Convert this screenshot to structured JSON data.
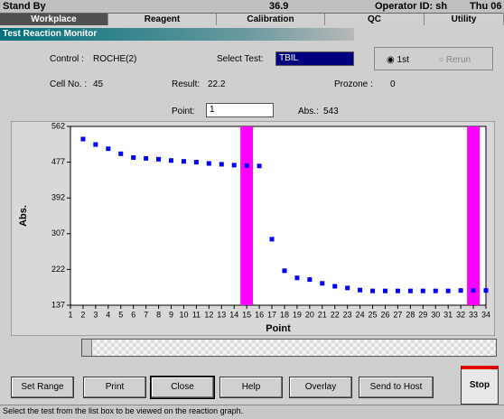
{
  "status_bar": {
    "state": "Stand By",
    "temperature": "36.9",
    "operator": "Operator ID: sh",
    "date": "Thu 06"
  },
  "tabs": [
    "Workplace",
    "Reagent",
    "Calibration",
    "QC",
    "Utility"
  ],
  "window": {
    "title": "Test Reaction Monitor"
  },
  "form": {
    "control_label": "Control :",
    "control_value": "ROCHE(2)",
    "select_test_label": "Select Test:",
    "select_test_value": "TBIL",
    "radio": [
      "1st",
      "Rerun"
    ],
    "cell_label": "Cell No. :",
    "cell_value": 45,
    "result_label": "Result:",
    "result_value": 22.2,
    "prozone_label": "Prozone :",
    "prozone_value": 0,
    "point_label": "Point:",
    "point_value": 1,
    "abs_label": "Abs.:",
    "abs_value": 543
  },
  "chart_data": {
    "type": "scatter",
    "xlabel": "Point",
    "ylabel": "Abs.",
    "color": "#0000ff",
    "x": [
      2,
      3,
      4,
      5,
      6,
      7,
      8,
      9,
      10,
      11,
      12,
      13,
      14,
      15,
      16,
      17,
      18,
      19,
      20,
      21,
      22,
      23,
      24,
      25,
      26,
      27,
      28,
      29,
      30,
      31,
      32,
      33,
      34
    ],
    "values": [
      532,
      519,
      509,
      497,
      488,
      486,
      484,
      481,
      479,
      477,
      474,
      472,
      470,
      469,
      468,
      294,
      219,
      202,
      198,
      189,
      182,
      178,
      173,
      171,
      171,
      171,
      171,
      171,
      171,
      171,
      172,
      172,
      172
    ],
    "xlim": [
      1,
      34
    ],
    "xticks": [
      1,
      2,
      3,
      4,
      5,
      6,
      7,
      8,
      9,
      10,
      11,
      12,
      13,
      14,
      15,
      16,
      17,
      18,
      19,
      20,
      21,
      22,
      23,
      24,
      25,
      26,
      27,
      28,
      29,
      30,
      31,
      32,
      33,
      34
    ],
    "ylim": [
      137,
      562
    ],
    "yticks": [
      137,
      222,
      307,
      392,
      477,
      562
    ],
    "highlight_x": [
      15,
      33
    ],
    "highlight_color": "#ff00ff"
  },
  "buttons": [
    "Set Range",
    "Print",
    "Close",
    "Help",
    "Overlay",
    "Send to Host"
  ],
  "stop_button": "Stop",
  "footer": {
    "message": "Select the test from the list box to be viewed on the reaction graph."
  }
}
